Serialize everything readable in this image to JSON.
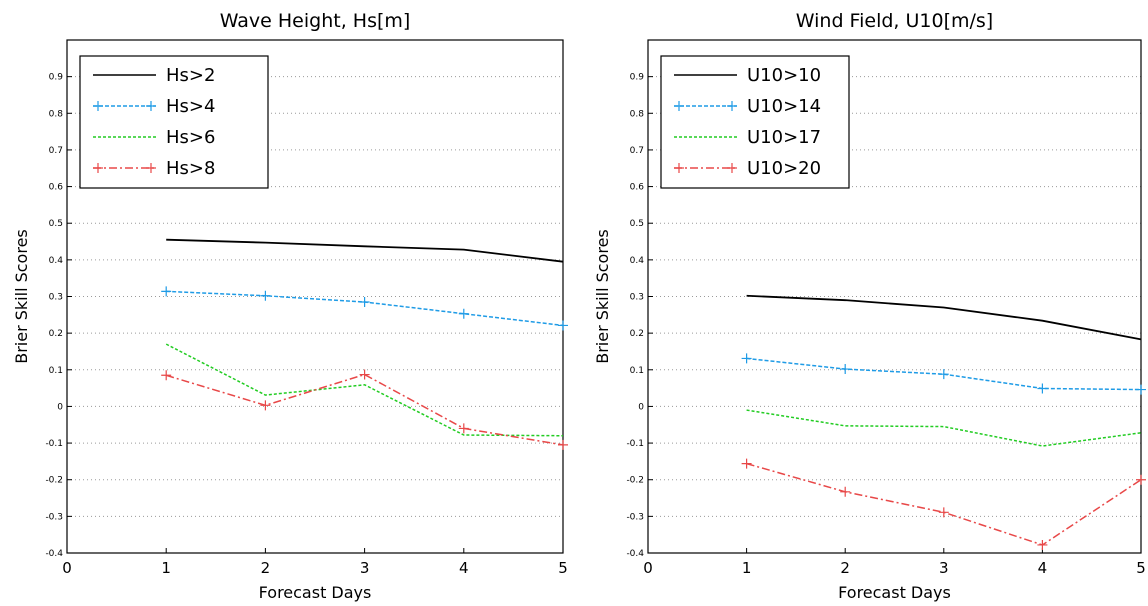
{
  "chart_data": [
    {
      "type": "line",
      "title": "Wave Height, Hs[m]",
      "xlabel": "Forecast Days",
      "ylabel": "Brier Skill Scores",
      "xlim": [
        0,
        5
      ],
      "ylim": [
        -0.4,
        1.0
      ],
      "xticks": [
        "0",
        "1",
        "2",
        "3",
        "4",
        "5"
      ],
      "yticks": [
        "-0.4",
        "-0.3",
        "-0.2",
        "-0.1",
        "0",
        "0.1",
        "0.2",
        "0.3",
        "0.4",
        "0.5",
        "0.6",
        "0.7",
        "0.8",
        "0.9"
      ],
      "grid": true,
      "legend": "top-left",
      "series": [
        {
          "name": "Hs>2",
          "color": "#000000",
          "dash": "",
          "marker": false,
          "x": [
            1,
            2,
            3,
            4,
            5
          ],
          "y": [
            0.455,
            0.447,
            0.437,
            0.428,
            0.395
          ]
        },
        {
          "name": "Hs>4",
          "color": "#1e9be6",
          "dash": "4,2",
          "marker": true,
          "x": [
            1,
            2,
            3,
            4,
            5
          ],
          "y": [
            0.314,
            0.302,
            0.285,
            0.253,
            0.221
          ]
        },
        {
          "name": "Hs>6",
          "color": "#22cc22",
          "dash": "3,2",
          "marker": false,
          "x": [
            1,
            2,
            3,
            4,
            5
          ],
          "y": [
            0.17,
            0.031,
            0.059,
            -0.078,
            -0.08
          ]
        },
        {
          "name": "Hs>8",
          "color": "#e84848",
          "dash": "8,3,2,3",
          "marker": true,
          "x": [
            1,
            2,
            3,
            4,
            5
          ],
          "y": [
            0.085,
            0.003,
            0.087,
            -0.06,
            -0.105
          ]
        }
      ]
    },
    {
      "type": "line",
      "title": "Wind Field, U10[m/s]",
      "xlabel": "Forecast Days",
      "ylabel": "Brier Skill Scores",
      "xlim": [
        0,
        5
      ],
      "ylim": [
        -0.4,
        1.0
      ],
      "xticks": [
        "0",
        "1",
        "2",
        "3",
        "4",
        "5"
      ],
      "yticks": [
        "-0.4",
        "-0.3",
        "-0.2",
        "-0.1",
        "0",
        "0.1",
        "0.2",
        "0.3",
        "0.4",
        "0.5",
        "0.6",
        "0.7",
        "0.8",
        "0.9"
      ],
      "grid": true,
      "legend": "top-left",
      "series": [
        {
          "name": "U10>10",
          "color": "#000000",
          "dash": "",
          "marker": false,
          "x": [
            1,
            2,
            3,
            4,
            5
          ],
          "y": [
            0.302,
            0.29,
            0.27,
            0.234,
            0.183
          ]
        },
        {
          "name": "U10>14",
          "color": "#1e9be6",
          "dash": "4,2",
          "marker": true,
          "x": [
            1,
            2,
            3,
            4,
            5
          ],
          "y": [
            0.131,
            0.102,
            0.088,
            0.049,
            0.046
          ]
        },
        {
          "name": "U10>17",
          "color": "#22cc22",
          "dash": "3,2",
          "marker": false,
          "x": [
            1,
            2,
            3,
            4,
            5
          ],
          "y": [
            -0.01,
            -0.053,
            -0.055,
            -0.108,
            -0.072
          ]
        },
        {
          "name": "U10>20",
          "color": "#e84848",
          "dash": "8,3,2,3",
          "marker": true,
          "x": [
            1,
            2,
            3,
            4,
            5
          ],
          "y": [
            -0.156,
            -0.233,
            -0.289,
            -0.378,
            -0.2
          ]
        }
      ]
    }
  ]
}
